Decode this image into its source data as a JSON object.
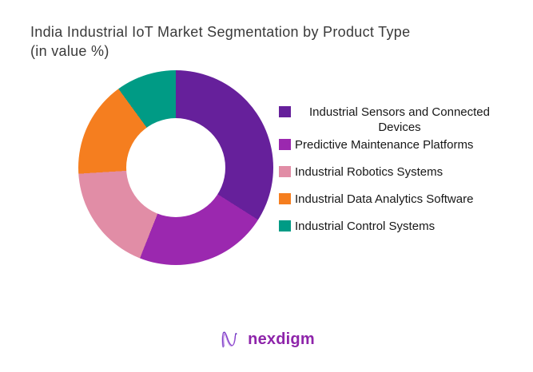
{
  "title": {
    "line1": "India Industrial IoT Market Segmentation by Product Type",
    "line2": "(in value %)"
  },
  "chart_data": {
    "type": "pie",
    "subtype": "donut",
    "title": "India Industrial IoT Market Segmentation by Product Type (in value %)",
    "unit": "value %",
    "start_angle_deg": 0,
    "direction": "clockwise",
    "inner_radius_ratio": 0.51,
    "legend_position": "right",
    "data_labels_shown": false,
    "categories": [
      "Industrial Sensors and Connected Devices",
      "Predictive Maintenance Platforms",
      "Industrial Robotics Systems",
      "Industrial Data Analytics Software",
      "Industrial Control Systems"
    ],
    "values": [
      34,
      22,
      18,
      16,
      10
    ],
    "colors": [
      "#66209B",
      "#9B28AF",
      "#E18DA6",
      "#F57E1F",
      "#009B85"
    ]
  },
  "legend": {
    "items": [
      {
        "label": "Industrial Sensors and Connected Devices",
        "color": "#66209B"
      },
      {
        "label": "Predictive Maintenance Platforms",
        "color": "#9B28AF"
      },
      {
        "label": "Industrial Robotics Systems",
        "color": "#E18DA6"
      },
      {
        "label": "Industrial Data Analytics Software",
        "color": "#F57E1F"
      },
      {
        "label": "Industrial Control Systems",
        "color": "#009B85"
      }
    ]
  },
  "footer": {
    "brand": "nexdigm",
    "logo_icon": "nexdigm-n-squiggle-icon",
    "brand_color": "#8E24AA",
    "icon_stroke_colors": [
      "#6A30C0",
      "#9C4FD6",
      "#B97BE0"
    ]
  },
  "colors": {
    "background": "#ffffff",
    "title_text": "#3a3a3a",
    "legend_text": "#171717"
  }
}
